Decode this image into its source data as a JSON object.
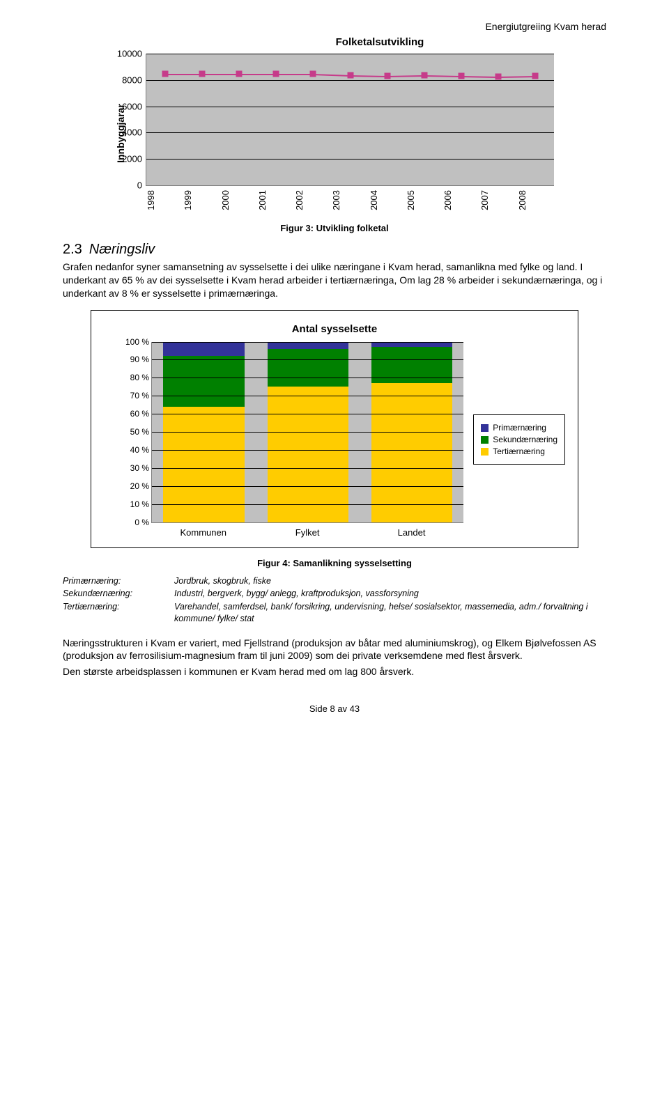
{
  "header_right": "Energiutgreiing Kvam herad",
  "chart1": {
    "title": "Folketalsutvikling",
    "ylabel": "Innbyggjarar",
    "ymin": 0,
    "ymax": 10000,
    "ytick_step": 2000,
    "yticks": [
      "0",
      "2000",
      "4000",
      "6000",
      "8000",
      "10000"
    ],
    "years": [
      "1998",
      "1999",
      "2000",
      "2001",
      "2002",
      "2003",
      "2004",
      "2005",
      "2006",
      "2007",
      "2008"
    ],
    "values": [
      {
        "year": "1998",
        "value": 8450
      },
      {
        "year": "1999",
        "value": 8450
      },
      {
        "year": "2000",
        "value": 8450
      },
      {
        "year": "2001",
        "value": 8450
      },
      {
        "year": "2002",
        "value": 8450
      },
      {
        "year": "2003",
        "value": 8350
      },
      {
        "year": "2004",
        "value": 8300
      },
      {
        "year": "2005",
        "value": 8350
      },
      {
        "year": "2006",
        "value": 8300
      },
      {
        "year": "2007",
        "value": 8250
      },
      {
        "year": "2008",
        "value": 8300
      }
    ],
    "line_color": "#c63b8a",
    "marker_color": "#c63b8a",
    "background_color": "#c0c0c0",
    "grid_color": "#000000"
  },
  "figure3_caption": "Figur 3: Utvikling folketal",
  "section_num": "2.3",
  "section_title": "Næringsliv",
  "para1": "Grafen nedanfor syner samansetning av sysselsette i dei ulike næringane i Kvam herad, samanlikna med fylke og land. I underkant av 65 % av dei sysselsette i Kvam herad arbeider i tertiærnæringa, Om lag 28 % arbeider i sekundærnæringa, og i underkant av 8 % er sysselsette i primærnæringa.",
  "chart2": {
    "title": "Antal sysselsette",
    "ymin": 0,
    "ymax": 100,
    "ytick_step": 10,
    "yticks": [
      "0 %",
      "10 %",
      "20 %",
      "30 %",
      "40 %",
      "50 %",
      "60 %",
      "70 %",
      "80 %",
      "90 %",
      "100 %"
    ],
    "categories": [
      "Kommunen",
      "Fylket",
      "Landet"
    ],
    "series_order": [
      "tertiar",
      "sekundar",
      "primar"
    ],
    "data": [
      {
        "label": "Kommunen",
        "primar": 8,
        "sekundar": 28,
        "tertiar": 64
      },
      {
        "label": "Fylket",
        "primar": 4,
        "sekundar": 21,
        "tertiar": 75
      },
      {
        "label": "Landet",
        "primar": 3,
        "sekundar": 20,
        "tertiar": 77
      }
    ],
    "colors": {
      "primar": "#333399",
      "sekundar": "#008000",
      "tertiar": "#ffcc00"
    },
    "legend": [
      {
        "key": "primar",
        "label": "Primærnæring"
      },
      {
        "key": "sekundar",
        "label": "Sekundærnæring"
      },
      {
        "key": "tertiar",
        "label": "Tertiærnæring"
      }
    ],
    "background_color": "#c0c0c0",
    "grid_color": "#000000"
  },
  "figure4_caption": "Figur 4: Samanlikning sysselsetting",
  "definitions": [
    {
      "term": "Primærnæring:",
      "body": "Jordbruk, skogbruk, fiske"
    },
    {
      "term": "Sekundærnæring:",
      "body": "Industri, bergverk, bygg/ anlegg, kraftproduksjon, vassforsyning"
    },
    {
      "term": "Tertiærnæring:",
      "body": "Varehandel, samferdsel, bank/ forsikring, undervisning, helse/ sosialsektor, massemedia, adm./ forvaltning i kommune/ fylke/ stat"
    }
  ],
  "para2": "Næringsstrukturen i Kvam er variert, med Fjellstrand (produksjon av båtar med aluminiumskrog), og Elkem Bjølvefossen AS (produksjon av ferrosilisium-magnesium fram til juni 2009) som dei private verksemdene med flest årsverk.",
  "para3": "Den største arbeidsplassen i kommunen er Kvam herad med om lag 800 årsverk.",
  "footer": "Side 8 av 43"
}
